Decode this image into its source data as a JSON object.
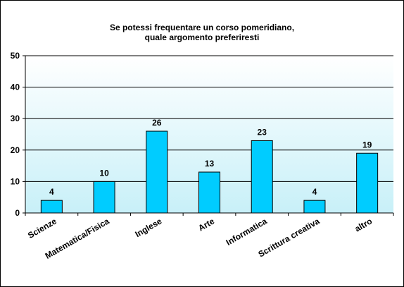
{
  "chart_data": {
    "type": "bar",
    "title": [
      "Se potessi  frequentare un corso  pomeridiano,",
      "quale argomento preferiresti"
    ],
    "categories": [
      "Scienze",
      "Matematica/Fisica",
      "Inglese",
      "Arte",
      "Informatica",
      "Scrittura creativa",
      "altro"
    ],
    "values": [
      4,
      10,
      26,
      13,
      23,
      4,
      19
    ],
    "ylim": [
      0,
      50
    ],
    "yticks": [
      0,
      10,
      20,
      30,
      40,
      50
    ],
    "grid": true,
    "legend": "none",
    "colors": {
      "plot_top": "#ffffff",
      "plot_bottom": "#c8f0f8",
      "bar_fill": "#00ccff",
      "bar_stroke": "#000000",
      "grid": "#000000"
    }
  }
}
